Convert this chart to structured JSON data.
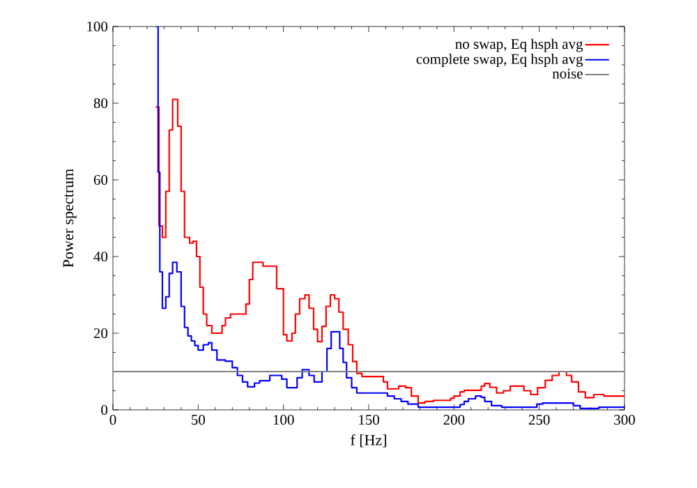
{
  "chart_data": {
    "type": "step",
    "xlabel": "f [Hz]",
    "ylabel": "Power spectrum",
    "xlim": [
      0,
      300
    ],
    "ylim": [
      0,
      100
    ],
    "xticks": [
      0,
      50,
      100,
      150,
      200,
      250,
      300
    ],
    "yticks": [
      0,
      20,
      40,
      60,
      80,
      100
    ],
    "legend": "top right",
    "grid": false,
    "series": [
      {
        "name": "no swap, Eq hsph avg",
        "color": "#ff0000",
        "x": [
          25,
          27,
          29,
          31,
          33,
          35,
          38,
          40,
          42,
          45,
          47,
          49,
          51,
          53,
          55,
          58,
          61,
          64,
          66,
          69,
          72,
          75,
          78,
          80,
          82,
          85,
          88,
          92,
          96,
          100,
          102,
          105,
          107,
          109.5,
          112.6,
          115,
          117.7,
          120,
          122.6,
          125,
          127.5,
          130,
          132.5,
          135,
          138,
          140.6,
          143,
          146,
          158.6,
          161,
          165,
          167.6,
          171.7,
          175,
          179,
          183,
          188,
          198,
          200,
          203.6,
          206,
          216,
          218,
          221,
          225,
          229,
          233,
          237,
          241,
          245,
          249,
          253.5,
          257.6,
          261.6,
          266,
          269,
          273,
          277,
          282,
          288,
          300
        ],
        "values": [
          79,
          48,
          45,
          57,
          73,
          81,
          74,
          57,
          45,
          43.5,
          44,
          40,
          32,
          25,
          22,
          20,
          20,
          22,
          24,
          25,
          25,
          25,
          27.6,
          34,
          38.5,
          38.5,
          37.5,
          37.5,
          31.6,
          19.6,
          18,
          20,
          25,
          29,
          30,
          26.5,
          21,
          17.8,
          21.8,
          27,
          30,
          29,
          25.5,
          21,
          17,
          12.6,
          9.5,
          8.7,
          7.3,
          5.5,
          5.5,
          6.2,
          5.8,
          3.6,
          1.8,
          2.2,
          2.5,
          3,
          3.6,
          4.7,
          5.1,
          6.2,
          6.9,
          5.9,
          4.4,
          5,
          6.2,
          6.2,
          5,
          4,
          5.8,
          7.7,
          9,
          10,
          9,
          7.3,
          4.7,
          3.2,
          4,
          3.6,
          3.6
        ]
      },
      {
        "name": "complete swap, Eq hsph avg",
        "color": "#0000ff",
        "x": [
          25,
          26.5,
          27.5,
          29,
          31,
          33,
          35,
          37.5,
          40,
          42,
          44,
          46,
          48,
          50,
          53,
          56,
          58,
          61,
          66,
          70,
          73,
          76,
          79,
          83,
          86,
          92,
          99,
          102,
          108,
          111,
          115,
          118,
          122.6,
          125.5,
          128,
          133,
          135,
          137,
          140,
          143,
          161,
          165,
          169,
          173,
          179,
          203.6,
          206,
          208.5,
          212.6,
          216,
          218,
          222,
          228,
          248.6,
          252,
          270,
          274,
          285,
          300
        ],
        "values": [
          100,
          62,
          36,
          26.5,
          29.5,
          35.6,
          38.5,
          36,
          27,
          21.5,
          19.3,
          18,
          16.8,
          15.6,
          17,
          17.5,
          15.6,
          13,
          12.7,
          11,
          9,
          7.3,
          6,
          7,
          7.6,
          9,
          8,
          5.8,
          8.4,
          10.5,
          9,
          7.3,
          10,
          16,
          20.4,
          16,
          12.4,
          8.4,
          5.8,
          4.4,
          3.6,
          2.9,
          2.2,
          1.5,
          0.7,
          1.4,
          2.2,
          2.9,
          3.6,
          3.3,
          2.2,
          1.1,
          0.7,
          1.5,
          1.8,
          1.1,
          0.4,
          0.7,
          0.7
        ]
      },
      {
        "name": "noise",
        "type": "line",
        "color": "#808080",
        "x": [
          0,
          300
        ],
        "values": [
          10,
          10
        ]
      }
    ]
  }
}
